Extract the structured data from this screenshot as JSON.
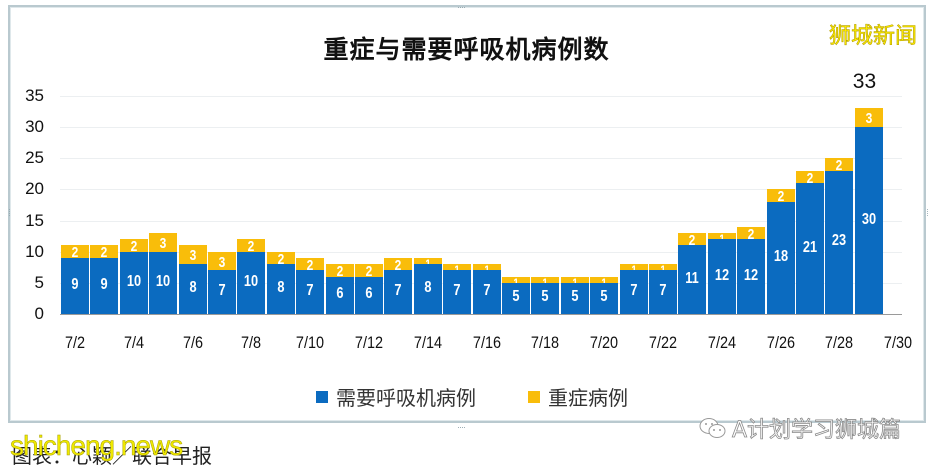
{
  "chart_data": {
    "type": "bar",
    "stacked": true,
    "title": "重症与需要呼吸机病例数",
    "xlabel": "",
    "ylabel": "",
    "ylim": [
      0,
      35
    ],
    "yticks": [
      0,
      5,
      10,
      15,
      20,
      25,
      30,
      35
    ],
    "grid": true,
    "legend_position": "bottom",
    "categories": [
      "7/2",
      "7/3",
      "7/4",
      "7/5",
      "7/6",
      "7/7",
      "7/8",
      "7/9",
      "7/10",
      "7/11",
      "7/12",
      "7/13",
      "7/14",
      "7/15",
      "7/16",
      "7/17",
      "7/18",
      "7/19",
      "7/20",
      "7/21",
      "7/22",
      "7/23",
      "7/24",
      "7/25",
      "7/26",
      "7/27",
      "7/28",
      "7/29"
    ],
    "xtick_labels": [
      "7/2",
      "7/4",
      "7/6",
      "7/8",
      "7/10",
      "7/12",
      "7/14",
      "7/16",
      "7/18",
      "7/20",
      "7/22",
      "7/24",
      "7/26",
      "7/28",
      "7/30"
    ],
    "series": [
      {
        "name": "需要呼吸机病例",
        "color": "#0b6bc0",
        "values": [
          9,
          9,
          10,
          10,
          8,
          7,
          10,
          8,
          7,
          6,
          6,
          7,
          8,
          7,
          7,
          5,
          5,
          5,
          5,
          7,
          7,
          11,
          12,
          12,
          18,
          21,
          23,
          30
        ]
      },
      {
        "name": "重症病例",
        "color": "#f9bd0a",
        "values": [
          2,
          2,
          2,
          3,
          3,
          3,
          2,
          2,
          2,
          2,
          2,
          2,
          1,
          1,
          1,
          1,
          1,
          1,
          1,
          1,
          1,
          2,
          1,
          2,
          2,
          2,
          2,
          3
        ]
      }
    ],
    "annotations": [
      {
        "text": "33",
        "x": "7/29",
        "position": "above-bar"
      }
    ]
  },
  "header": {
    "title": "重症与需要呼吸机病例数",
    "brand": "狮城新闻"
  },
  "legend": {
    "items": [
      {
        "label": "需要呼吸机病例",
        "color": "#0b6bc0"
      },
      {
        "label": "重症病例",
        "color": "#f9bd0a"
      }
    ]
  },
  "footer": {
    "caption": "图表：心颖／联合早报",
    "watermark_left": "shicheng.news",
    "watermark_right": "A计划学习狮城篇"
  }
}
